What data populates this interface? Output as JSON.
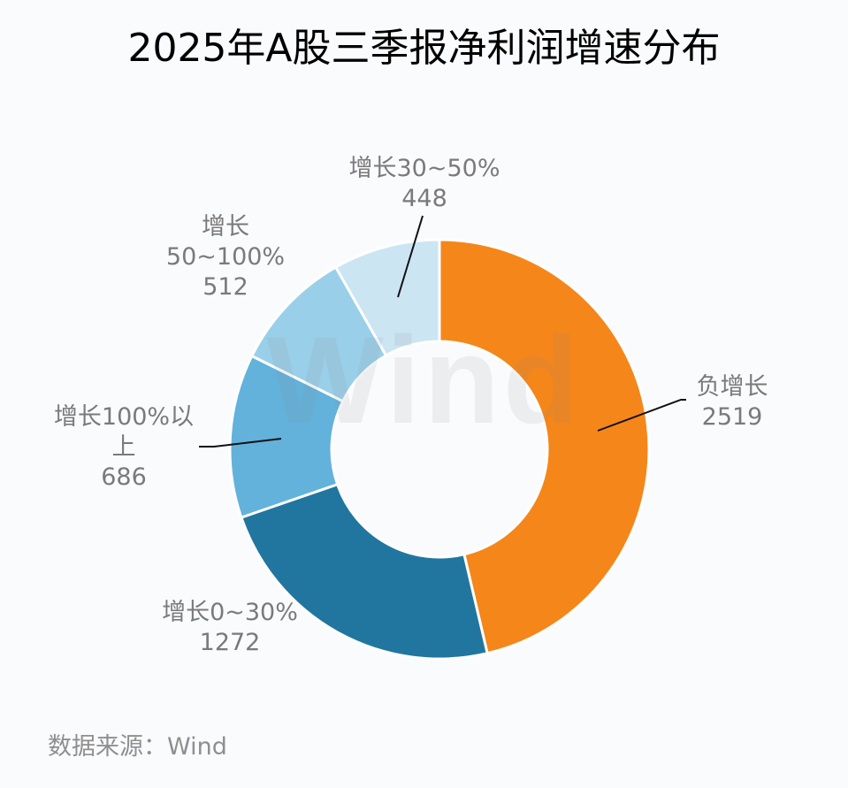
{
  "title": "2025年A股三季报净利润增速分布",
  "source": "数据来源：Wind",
  "watermark": "Wind",
  "chart_data": {
    "type": "pie",
    "subtype": "donut",
    "title": "2025年A股三季报净利润增速分布",
    "categories": [
      "负增长",
      "增长0~30%",
      "增长100%以上",
      "增长50~100%",
      "增长30~50%"
    ],
    "values": [
      2519,
      1272,
      686,
      512,
      448
    ],
    "colors": [
      "#f5861a",
      "#2176a0",
      "#62b2dc",
      "#9acfe9",
      "#cbe5f3"
    ],
    "labels": [
      {
        "line1": "负增长",
        "line2": "2519"
      },
      {
        "line1": "增长0~30%",
        "line2": "1272"
      },
      {
        "line1": "增长100%以",
        "line2": "上",
        "line3": "686"
      },
      {
        "line1": "增长",
        "line2": "50~100%",
        "line3": "512"
      },
      {
        "line1": "增长30~50%",
        "line2": "448"
      }
    ],
    "start_angle_deg": 0,
    "direction": "clockwise",
    "legend": "none",
    "source": "数据来源：Wind"
  }
}
